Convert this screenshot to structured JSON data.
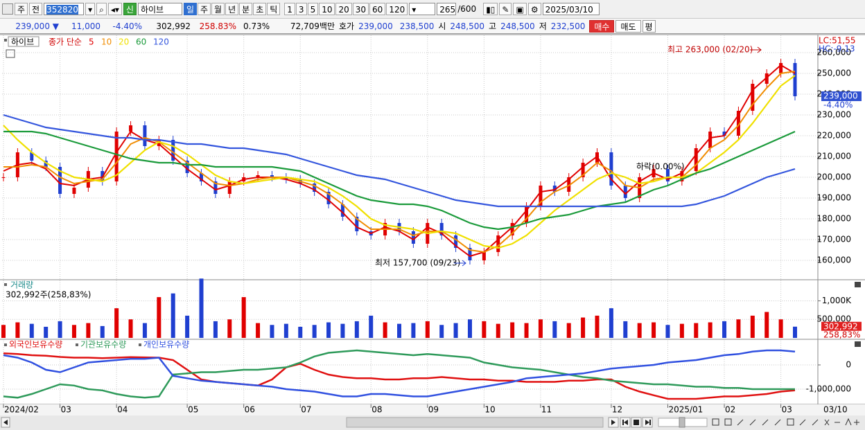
{
  "toolbar": {
    "market": "주",
    "prev": "전",
    "code": "352820",
    "new": "신",
    "name": "하이브",
    "periods": [
      "일",
      "주",
      "월",
      "년",
      "분",
      "초",
      "틱"
    ],
    "intervals": [
      "1",
      "3",
      "5",
      "10",
      "20",
      "30",
      "60",
      "120"
    ],
    "count": "265",
    "max": "/600",
    "date": "2025/03/10"
  },
  "quote": {
    "price": "239,000 ▼",
    "change": "11,000",
    "change_pct": "-4.40%",
    "volume": "302,992",
    "volume_pct": "258.83%",
    "turnover": "0.73%",
    "amount": "72,709백만",
    "ask_label": "호가",
    "ask": "239,000",
    "bid": "238,500",
    "open_label": "시",
    "open": "248,500",
    "high_label": "고",
    "high": "248,500",
    "low_label": "저",
    "low": "232,500",
    "buy": "매수",
    "sell": "매도",
    "avg": "평"
  },
  "chart_data": [
    {
      "type": "candle",
      "title": "하이브",
      "subtitle": "종가 단순",
      "categories": [
        "2024/02",
        null,
        null,
        null,
        "03",
        null,
        null,
        null,
        "04",
        null,
        null,
        null,
        null,
        "05",
        null,
        null,
        null,
        "06",
        null,
        null,
        null,
        "07",
        null,
        null,
        null,
        null,
        "08",
        null,
        null,
        null,
        "09",
        null,
        null,
        null,
        "10",
        null,
        null,
        null,
        "11",
        null,
        null,
        null,
        null,
        "12",
        null,
        null,
        null,
        "2025/01",
        null,
        null,
        null,
        "02",
        null,
        null,
        null,
        "03",
        null
      ],
      "x_end_label": "03/10",
      "values": [
        200000,
        212000,
        208000,
        205000,
        192000,
        195000,
        203000,
        198000,
        222000,
        225000,
        215000,
        218000,
        208000,
        202000,
        198000,
        192000,
        198000,
        200000,
        201000,
        200000,
        199000,
        197000,
        193000,
        187000,
        181000,
        174000,
        172000,
        178000,
        174000,
        168000,
        178000,
        172000,
        166000,
        160000,
        164000,
        172000,
        178000,
        186000,
        196000,
        193000,
        200000,
        207000,
        212000,
        196000,
        190000,
        200000,
        204000,
        198000,
        203000,
        214000,
        222000,
        220000,
        232000,
        245000,
        250000,
        255000,
        239000
      ],
      "up_color": "#e00000",
      "down_color": "#1f3fd0",
      "series": [
        {
          "name": "5",
          "color": "#e00000",
          "values": [
            203000,
            206000,
            207000,
            204000,
            197000,
            196000,
            199000,
            200000,
            212000,
            222000,
            218000,
            216000,
            210000,
            204000,
            199000,
            194000,
            196000,
            199000,
            200000,
            200000,
            199000,
            197000,
            194000,
            189000,
            183000,
            176000,
            173000,
            176000,
            174000,
            170000,
            176000,
            173000,
            167000,
            162000,
            164000,
            170000,
            176000,
            184000,
            193000,
            194000,
            199000,
            205000,
            210000,
            199000,
            192000,
            198000,
            202000,
            199000,
            202000,
            211000,
            219000,
            220000,
            230000,
            242000,
            248000,
            254000,
            250000
          ]
        },
        {
          "name": "10",
          "color": "#f08c00",
          "values": [
            205000,
            205000,
            206000,
            205000,
            200000,
            197000,
            198000,
            199000,
            207000,
            216000,
            219000,
            217000,
            212000,
            207000,
            202000,
            197000,
            196000,
            197000,
            199000,
            200000,
            200000,
            198000,
            196000,
            192000,
            187000,
            180000,
            175000,
            175000,
            175000,
            172000,
            174000,
            174000,
            170000,
            165000,
            164000,
            167000,
            173000,
            180000,
            188000,
            193000,
            196000,
            201000,
            207000,
            203000,
            196000,
            195000,
            199000,
            200000,
            200000,
            206000,
            214000,
            218000,
            225000,
            235000,
            243000,
            250000,
            251000
          ]
        },
        {
          "name": "20",
          "color": "#f0e000",
          "values": [
            225000,
            218000,
            212000,
            207000,
            203000,
            200000,
            199000,
            198000,
            201000,
            207000,
            213000,
            217000,
            215000,
            211000,
            206000,
            201000,
            198000,
            197000,
            198000,
            199000,
            200000,
            199000,
            198000,
            195000,
            191000,
            186000,
            180000,
            177000,
            176000,
            175000,
            173000,
            174000,
            173000,
            170000,
            167000,
            166000,
            168000,
            172000,
            178000,
            184000,
            189000,
            194000,
            199000,
            202000,
            200000,
            197000,
            198000,
            200000,
            200000,
            202000,
            207000,
            212000,
            218000,
            226000,
            235000,
            244000,
            249000
          ]
        },
        {
          "name": "60",
          "color": "#1a9a3a",
          "values": [
            222000,
            222000,
            222000,
            221000,
            219000,
            217000,
            215000,
            213000,
            211000,
            209000,
            208000,
            207000,
            207000,
            206000,
            206000,
            205000,
            205000,
            205000,
            205000,
            205000,
            204000,
            203000,
            200000,
            197000,
            194000,
            191000,
            189000,
            188000,
            187000,
            187000,
            186000,
            184000,
            181000,
            178000,
            176000,
            175000,
            176000,
            178000,
            180000,
            181000,
            182000,
            184000,
            186000,
            187000,
            188000,
            191000,
            194000,
            196000,
            199000,
            202000,
            204000,
            207000,
            210000,
            213000,
            216000,
            219000,
            222000
          ]
        },
        {
          "name": "120",
          "color": "#3355dd",
          "values": [
            230000,
            228000,
            226000,
            224000,
            223000,
            222000,
            221000,
            220000,
            219000,
            219000,
            218000,
            218000,
            217000,
            216000,
            216000,
            215000,
            214000,
            214000,
            213000,
            212000,
            211000,
            209000,
            207000,
            205000,
            203000,
            201000,
            200000,
            199000,
            197000,
            195000,
            193000,
            191000,
            189000,
            188000,
            187000,
            186000,
            186000,
            186000,
            186000,
            186000,
            186000,
            186000,
            186000,
            186000,
            186000,
            186000,
            186000,
            186000,
            186000,
            187000,
            189000,
            191000,
            194000,
            197000,
            200000,
            202000,
            204000
          ]
        }
      ],
      "ylim": [
        151000,
        268000
      ],
      "yticks": [
        {
          "value": 160000,
          "label": "160,000"
        },
        {
          "value": 170000,
          "label": "170,000"
        },
        {
          "value": 180000,
          "label": "180,000"
        },
        {
          "value": 190000,
          "label": "190,000"
        },
        {
          "value": 200000,
          "label": "200,000"
        },
        {
          "value": 210000,
          "label": "210,000"
        },
        {
          "value": 220000,
          "label": "220,000"
        },
        {
          "value": 230000,
          "label": "230,000"
        },
        {
          "value": 240000,
          "label": "240,000"
        },
        {
          "value": 250000,
          "label": "250,000"
        },
        {
          "value": 260000,
          "label": "260,000"
        }
      ],
      "grid": true,
      "annotations": [
        "최고 263,000 (02/20)",
        "최저 157,700 (09/23)",
        "하락(0.00%)"
      ],
      "indicators": [
        "LC:51,55",
        "HC:-9.13"
      ],
      "last_label": "239,000",
      "last_change_label": "-4.40%"
    },
    {
      "type": "bar",
      "title": "거래량",
      "subtitle": "302,992주(258,83%)",
      "values": [
        350000,
        420000,
        380000,
        300000,
        450000,
        350000,
        400000,
        320000,
        800000,
        500000,
        400000,
        1100000,
        1200000,
        600000,
        1600000,
        450000,
        500000,
        1100000,
        400000,
        350000,
        380000,
        300000,
        350000,
        420000,
        380000,
        450000,
        600000,
        420000,
        380000,
        400000,
        450000,
        350000,
        400000,
        500000,
        450000,
        380000,
        420000,
        400000,
        500000,
        450000,
        400000,
        550000,
        600000,
        800000,
        450000,
        400000,
        420000,
        350000,
        380000,
        400000,
        420000,
        450000,
        500000,
        600000,
        700000,
        500000,
        302992
      ],
      "ylim": [
        0,
        1550000
      ],
      "yticks": [
        {
          "value": 500000,
          "label": "500,000"
        },
        {
          "value": 1000000,
          "label": "1,000K"
        }
      ],
      "grid": true,
      "last_label": "302,992",
      "last_change_label": "258,83%"
    },
    {
      "type": "line",
      "series": [
        {
          "name": "외국인보유수량",
          "color": "#e01010",
          "values": [
            480000,
            450000,
            400000,
            380000,
            330000,
            300000,
            300000,
            280000,
            300000,
            320000,
            310000,
            300000,
            200000,
            -200000,
            -600000,
            -700000,
            -750000,
            -800000,
            -850000,
            -600000,
            -100000,
            50000,
            -200000,
            -400000,
            -500000,
            -550000,
            -550000,
            -600000,
            -600000,
            -550000,
            -550000,
            -500000,
            -550000,
            -600000,
            -600000,
            -650000,
            -650000,
            -700000,
            -700000,
            -700000,
            -650000,
            -650000,
            -600000,
            -600000,
            -900000,
            -1100000,
            -1250000,
            -1400000,
            -1400000,
            -1400000,
            -1350000,
            -1300000,
            -1300000,
            -1250000,
            -1200000,
            -1100000,
            -1050000
          ]
        },
        {
          "name": "기관보유수량",
          "color": "#2e9a5a",
          "values": [
            -1300000,
            -1350000,
            -1200000,
            -1000000,
            -800000,
            -850000,
            -1000000,
            -1050000,
            -1200000,
            -1300000,
            -1350000,
            -1300000,
            -400000,
            -350000,
            -300000,
            -300000,
            -250000,
            -200000,
            -200000,
            -150000,
            -100000,
            100000,
            350000,
            500000,
            550000,
            600000,
            550000,
            500000,
            450000,
            400000,
            450000,
            400000,
            350000,
            300000,
            100000,
            0,
            -100000,
            -150000,
            -200000,
            -300000,
            -400000,
            -500000,
            -550000,
            -650000,
            -700000,
            -750000,
            -800000,
            -800000,
            -850000,
            -900000,
            -900000,
            -950000,
            -950000,
            -1000000,
            -1000000,
            -1000000,
            -1000000
          ]
        },
        {
          "name": "개인보유수량",
          "color": "#3050e0",
          "values": [
            400000,
            300000,
            100000,
            -200000,
            -300000,
            -100000,
            100000,
            150000,
            200000,
            250000,
            250000,
            300000,
            -450000,
            -550000,
            -650000,
            -700000,
            -750000,
            -800000,
            -850000,
            -900000,
            -1000000,
            -1050000,
            -1100000,
            -1200000,
            -1300000,
            -1300000,
            -1200000,
            -1200000,
            -1250000,
            -1300000,
            -1300000,
            -1200000,
            -1100000,
            -1000000,
            -900000,
            -800000,
            -700000,
            -550000,
            -500000,
            -450000,
            -400000,
            -350000,
            -250000,
            -150000,
            -100000,
            -50000,
            0,
            100000,
            150000,
            200000,
            300000,
            400000,
            450000,
            550000,
            600000,
            600000,
            550000
          ]
        }
      ],
      "ylim": [
        -1600000,
        1000000
      ],
      "yticks": [
        0,
        {
          "value": -1000000,
          "label": "-1,000,000"
        }
      ],
      "grid": true
    }
  ]
}
